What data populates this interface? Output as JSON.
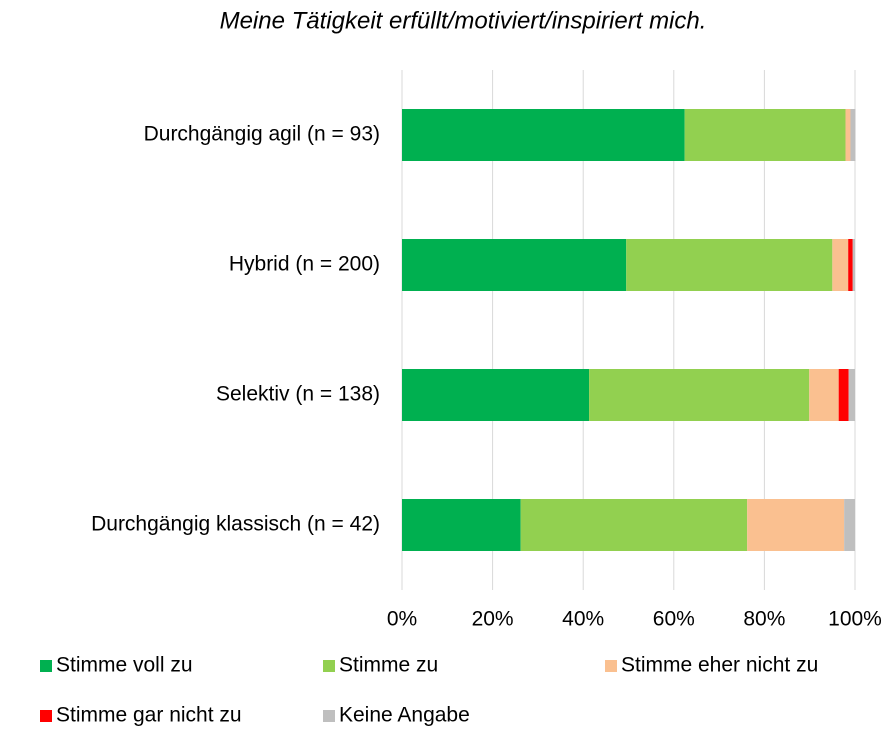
{
  "chart_data": {
    "type": "stacked_bar_horizontal",
    "title": "Meine Tätigkeit erfüllt/motiviert/inspiriert mich.",
    "categories": [
      "Durchgängig agil (n = 93)",
      "Hybrid  (n = 200)",
      "Selektiv (n = 138)",
      "Durchgängig klassisch (n = 42)"
    ],
    "series": [
      {
        "name": "Stimme voll zu",
        "color": "#00b050",
        "values": [
          62.4,
          49.5,
          41.3,
          26.2
        ]
      },
      {
        "name": "Stimme zu",
        "color": "#92d050",
        "values": [
          35.5,
          45.5,
          48.6,
          50.0
        ]
      },
      {
        "name": "Stimme eher nicht zu",
        "color": "#fac090",
        "values": [
          1.1,
          3.5,
          6.5,
          21.4
        ]
      },
      {
        "name": "Stimme gar nicht zu",
        "color": "#ff0000",
        "values": [
          0,
          1.0,
          2.2,
          0
        ]
      },
      {
        "name": "Keine Angabe",
        "color": "#bfbfbf",
        "values": [
          1.1,
          0.5,
          1.4,
          2.4
        ]
      }
    ],
    "xlim": [
      0,
      100
    ],
    "xticks": [
      {
        "value": 0,
        "label": "0%"
      },
      {
        "value": 20,
        "label": "20%"
      },
      {
        "value": 40,
        "label": "40%"
      },
      {
        "value": 60,
        "label": "60%"
      },
      {
        "value": 80,
        "label": "80%"
      },
      {
        "value": 100,
        "label": "100%"
      }
    ],
    "grid": true,
    "legend": "bottom"
  }
}
